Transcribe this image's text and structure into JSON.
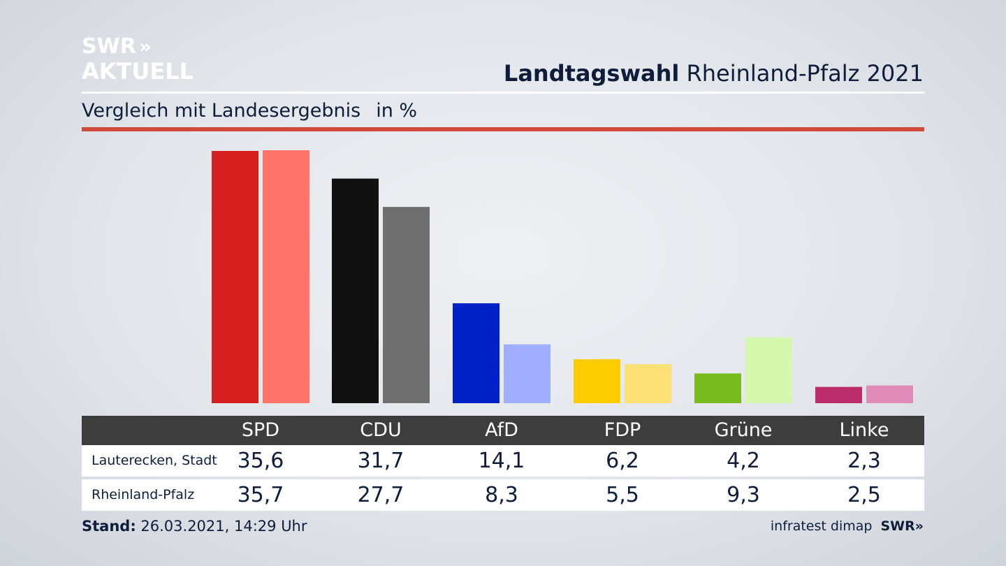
{
  "logo": {
    "line1": "SWR",
    "chevrons": "»",
    "line2": "AKTUELL"
  },
  "header": {
    "title_bold": "Landtagswahl",
    "title_rest": "Rheinland-Pfalz 2021"
  },
  "subheader": {
    "text": "Vergleich mit Landesergebnis",
    "unit": "in %"
  },
  "footer": {
    "stand_label": "Stand:",
    "stand_value": "26.03.2021, 14:29 Uhr",
    "source": "infratest dimap",
    "brand": "SWR",
    "brand_chevrons": "»"
  },
  "colors": {
    "series1": [
      "#d61f1f",
      "#111111",
      "#0022c8",
      "#ffcc00",
      "#78bb1e",
      "#bb2c6b"
    ],
    "series2": [
      "#ff7369",
      "#706f6f",
      "#9faeff",
      "#fde175",
      "#d4f6ad",
      "#e18bb8"
    ],
    "accent_rule": "#cf4a3a",
    "table_header": "#3d3d3d"
  },
  "chart_data": {
    "type": "bar",
    "categories": [
      "SPD",
      "CDU",
      "AfD",
      "FDP",
      "Grüne",
      "Linke"
    ],
    "series": [
      {
        "name": "Lauterecken, Stadt",
        "values": [
          35.6,
          31.7,
          14.1,
          6.2,
          4.2,
          2.3
        ]
      },
      {
        "name": "Rheinland-Pfalz",
        "values": [
          35.7,
          27.7,
          8.3,
          5.5,
          9.3,
          2.5
        ]
      }
    ],
    "title": "Landtagswahl Rheinland-Pfalz 2021",
    "subtitle": "Vergleich mit Landesergebnis",
    "ylabel": "in %",
    "ylim": [
      0,
      35.7
    ],
    "grid": false
  },
  "table": {
    "rows": [
      {
        "label": "Lauterecken, Stadt",
        "values": [
          "35,6",
          "31,7",
          "14,1",
          "6,2",
          "4,2",
          "2,3"
        ]
      },
      {
        "label": "Rheinland-Pfalz",
        "values": [
          "35,7",
          "27,7",
          "8,3",
          "5,5",
          "9,3",
          "2,5"
        ]
      }
    ]
  }
}
